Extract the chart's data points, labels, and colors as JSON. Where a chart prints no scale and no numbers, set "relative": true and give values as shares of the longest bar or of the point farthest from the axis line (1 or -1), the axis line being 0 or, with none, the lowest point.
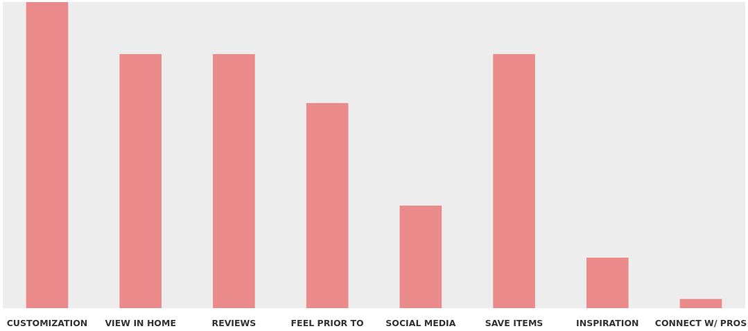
{
  "chart_data": {
    "type": "bar",
    "relative": true,
    "categories": [
      "CUSTOMIZATION",
      "VIEW IN HOME",
      "REVIEWS",
      "FEEL PRIOR TO",
      "SOCIAL MEDIA",
      "SAVE ITEMS",
      "INSPIRATION",
      "CONNECT W/ PROS"
    ],
    "values": [
      1,
      0.83,
      0.83,
      0.67,
      0.335,
      0.83,
      0.165,
      0.03
    ],
    "color": "#eb8a8a"
  }
}
